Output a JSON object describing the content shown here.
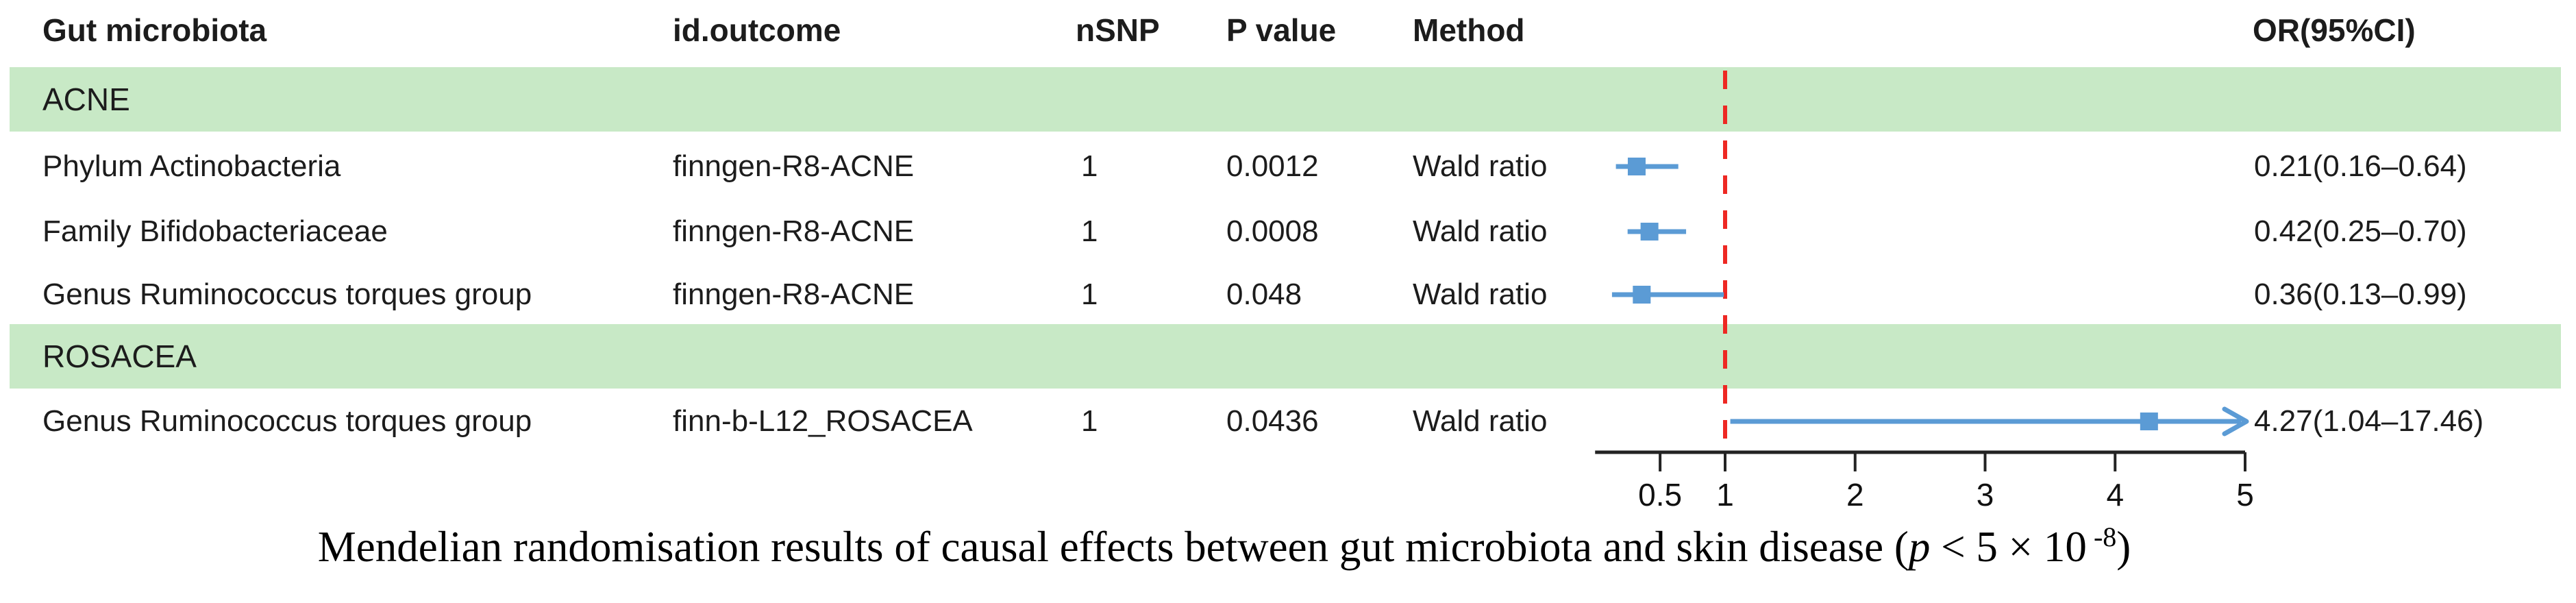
{
  "table": {
    "columns": {
      "gut_microbiota": "Gut microbiota",
      "id_outcome": "id.outcome",
      "nsnp": "nSNP",
      "p_value": "P value",
      "method": "Method",
      "or_ci": "OR(95%CI)"
    },
    "groups": [
      {
        "label": "ACNE",
        "rows": [
          {
            "name": "Phylum Actinobacteria",
            "id_outcome": "finngen-R8-ACNE",
            "nsnp": "1",
            "p_value": "0.0012",
            "method": "Wald ratio",
            "or_ci": "0.21(0.16–0.64)"
          },
          {
            "name": "Family Bifidobacteriaceae",
            "id_outcome": "finngen-R8-ACNE",
            "nsnp": "1",
            "p_value": "0.0008",
            "method": "Wald ratio",
            "or_ci": "0.42(0.25–0.70)"
          },
          {
            "name": "Genus Ruminococcus torques group",
            "id_outcome": "finngen-R8-ACNE",
            "nsnp": "1",
            "p_value": "0.048",
            "method": "Wald ratio",
            "or_ci": "0.36(0.13–0.99)"
          }
        ]
      },
      {
        "label": "ROSACEA",
        "rows": [
          {
            "name": "Genus Ruminococcus torques group",
            "id_outcome": "finn-b-L12_ROSACEA",
            "nsnp": "1",
            "p_value": "0.0436",
            "method": "Wald ratio",
            "or_ci": "4.27(1.04–17.46)"
          }
        ]
      }
    ]
  },
  "chart_data": {
    "type": "forest",
    "x_axis": {
      "scale": "linear",
      "range": [
        0,
        5
      ],
      "tick_values": [
        0.5,
        1,
        2,
        3,
        4,
        5
      ],
      "tick_labels": [
        "0.5",
        "1",
        "2",
        "3",
        "4",
        "5"
      ],
      "reference_line": 1
    },
    "series": [
      {
        "group": "ACNE",
        "label": "Phylum Actinobacteria",
        "or": 0.21,
        "ci_low": 0.16,
        "ci_high": 0.64,
        "clipped": false
      },
      {
        "group": "ACNE",
        "label": "Family Bifidobacteriaceae",
        "or": 0.42,
        "ci_low": 0.25,
        "ci_high": 0.7,
        "clipped": false
      },
      {
        "group": "ACNE",
        "label": "Genus Ruminococcus torques group",
        "or": 0.36,
        "ci_low": 0.13,
        "ci_high": 0.99,
        "clipped": false
      },
      {
        "group": "ROSACEA",
        "label": "Genus Ruminococcus torques group",
        "or": 4.27,
        "ci_low": 1.04,
        "ci_high": 17.46,
        "clipped": true
      }
    ]
  },
  "caption": {
    "prefix": "Mendelian randomisation results of causal effects between gut microbiota and skin disease (",
    "p_italic": "p",
    "middle": " < 5 × 10",
    "superscript": "-8",
    "suffix": ")"
  },
  "colors": {
    "band_green": "#c8e9c6",
    "marker_blue": "#5b9bd5",
    "reference_red": "#ee2823",
    "axis_black": "#232323"
  }
}
